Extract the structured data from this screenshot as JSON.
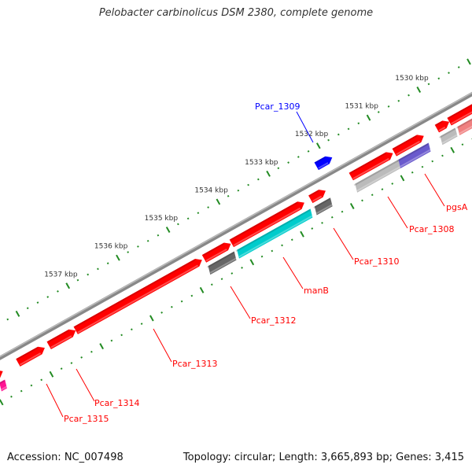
{
  "title": "Pelobacter carbinolicus DSM 2380, complete genome",
  "footer": {
    "accession": "Accession: NC_007498",
    "summary": "Topology: circular; Length: 3,665,893 bp; Genes: 3,415"
  },
  "ruler": {
    "labels": [
      "1530 kbp",
      "1531 kbp",
      "1532 kbp",
      "1533 kbp",
      "1534 kbp",
      "1535 kbp",
      "1536 kbp",
      "1537 kbp"
    ],
    "kbp_values": [
      1530,
      1531,
      1532,
      1533,
      1534,
      1535,
      1536,
      1537
    ]
  },
  "colors": {
    "backbone": "#888888",
    "forward": "#ff0000",
    "reverse": "#0000ff",
    "tick": "#228b22",
    "cyan": "#00cccc",
    "purple": "#6a5acd",
    "dark_gray": "#666666",
    "light_gray": "#bbbbbb",
    "magenta": "#ff1493",
    "pink": "#f08080"
  },
  "gene_labels": [
    {
      "text": "Pcar_1309",
      "color": "#0000ff"
    },
    {
      "text": "Pcar_1308",
      "color": "#ff0000"
    },
    {
      "text": "pgsA",
      "color": "#ff0000"
    },
    {
      "text": "Pcar_1310",
      "color": "#ff0000"
    },
    {
      "text": "manB",
      "color": "#ff0000"
    },
    {
      "text": "Pcar_1312",
      "color": "#ff0000"
    },
    {
      "text": "Pcar_1313",
      "color": "#ff0000"
    },
    {
      "text": "Pcar_1314",
      "color": "#ff0000"
    },
    {
      "text": "Pcar_1315",
      "color": "#ff0000"
    }
  ]
}
